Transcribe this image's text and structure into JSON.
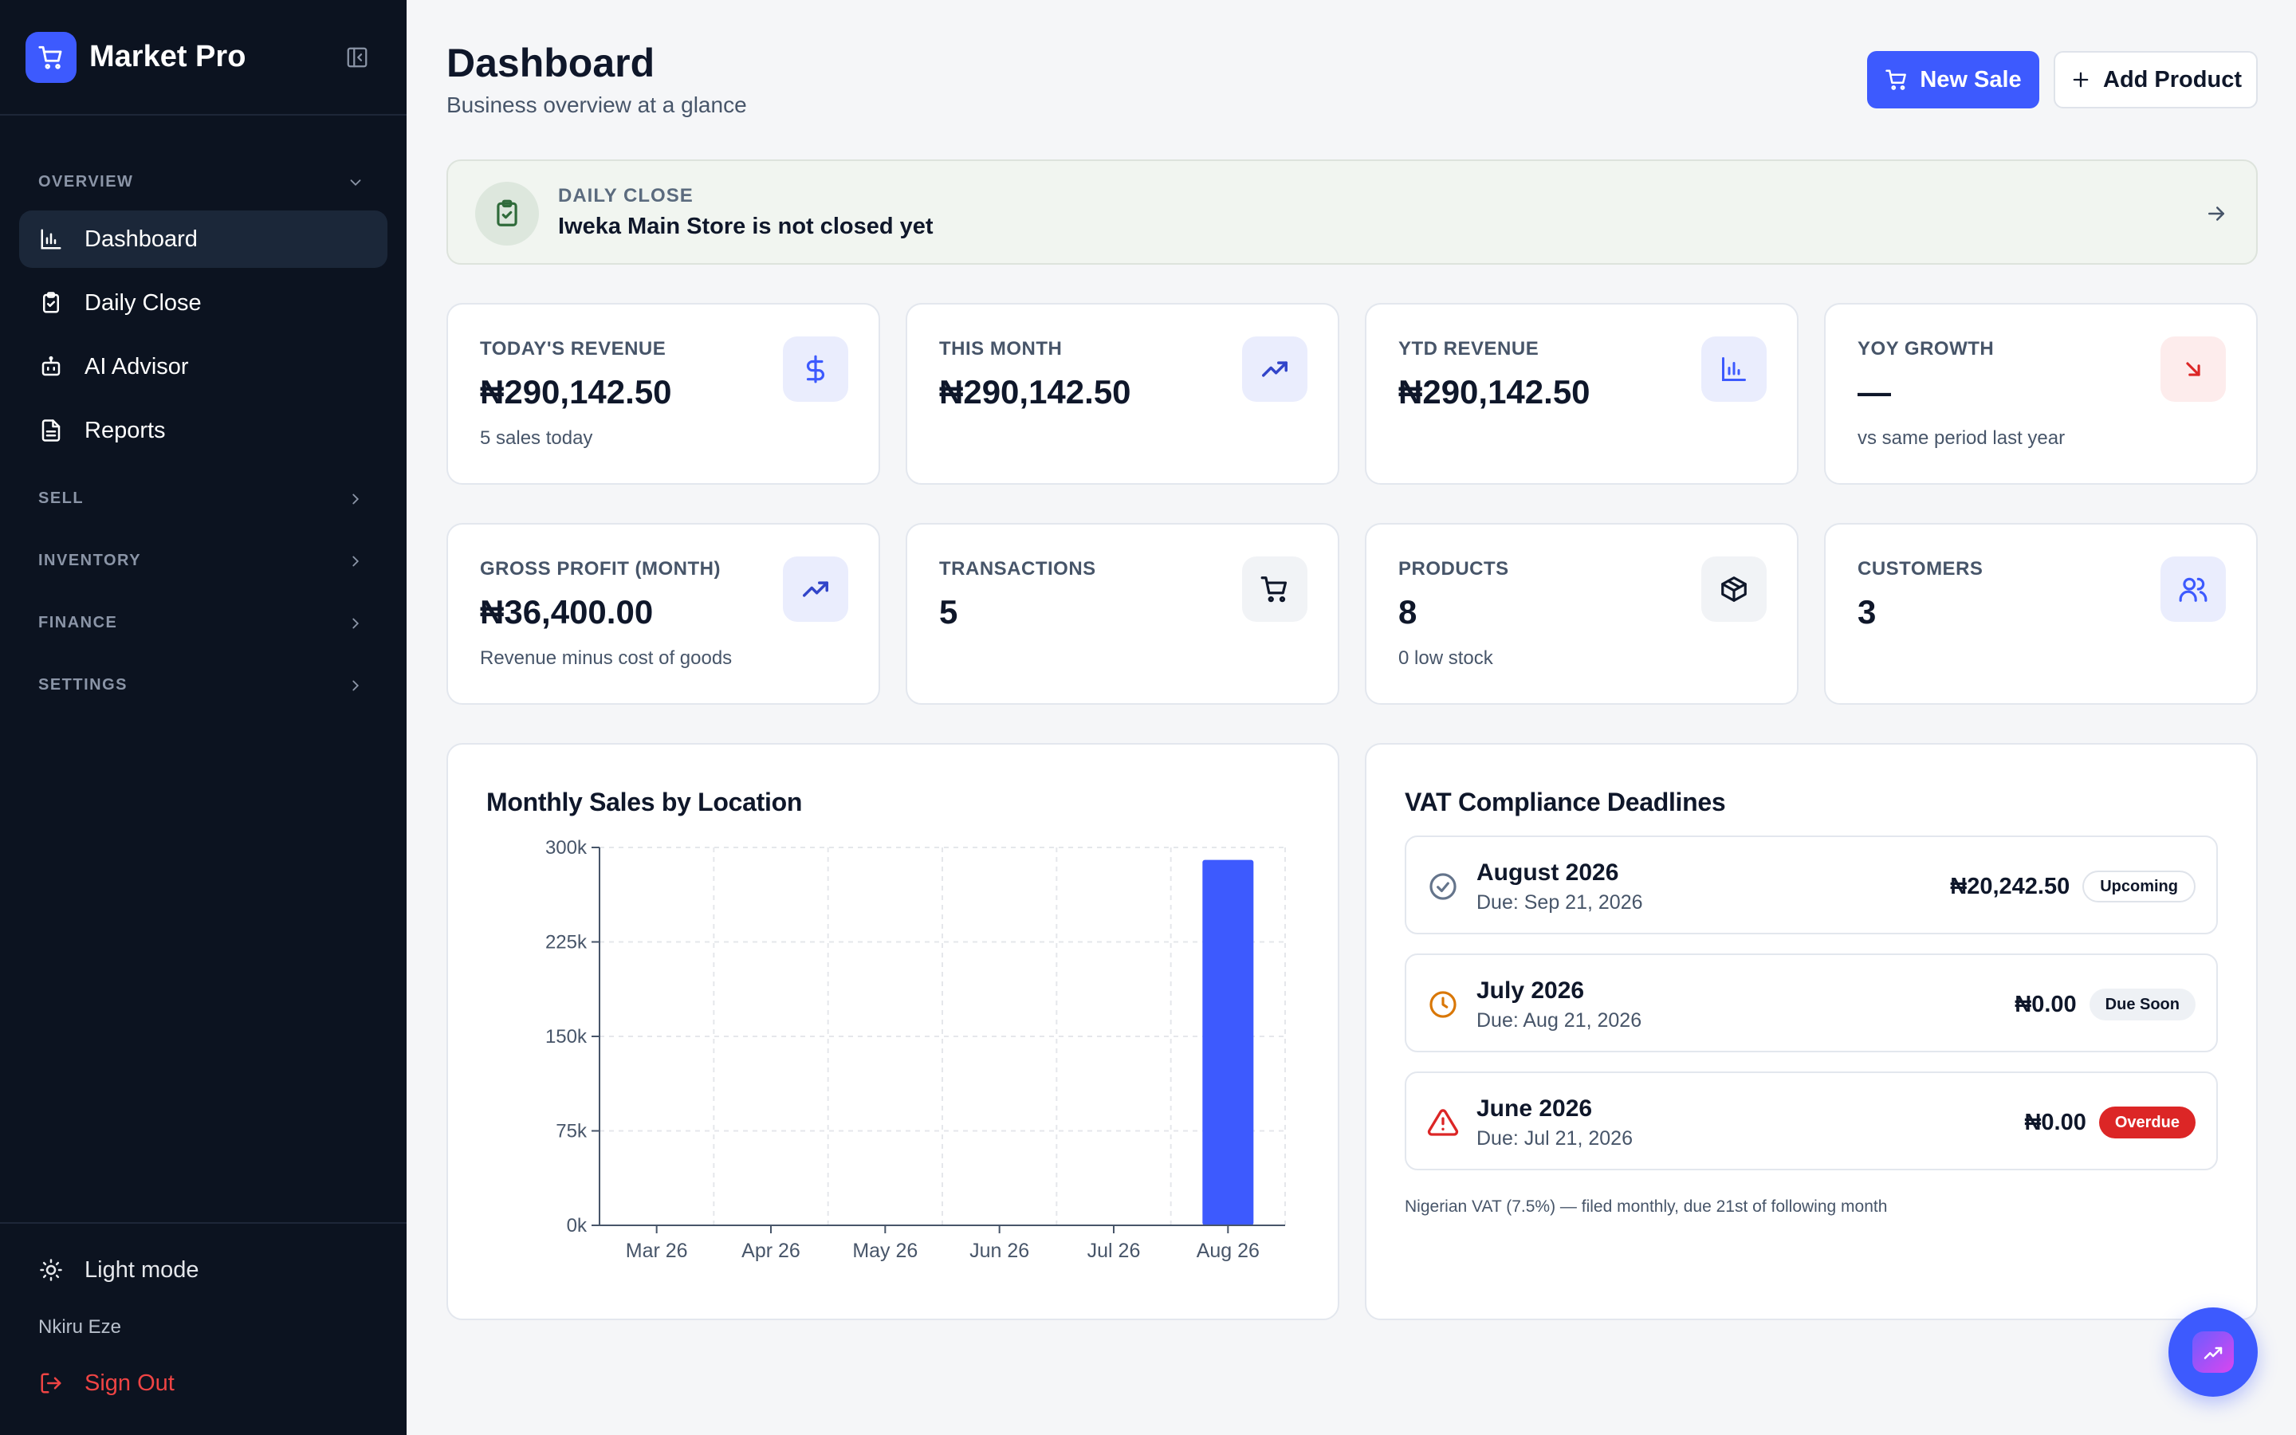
{
  "sidebar": {
    "brand": "Market Pro",
    "sections": {
      "overview": "OVERVIEW",
      "sell": "SELL",
      "inventory": "INVENTORY",
      "finance": "FINANCE",
      "settings": "SETTINGS"
    },
    "items": [
      {
        "label": "Dashboard",
        "icon": "bar-chart-icon",
        "active": true
      },
      {
        "label": "Daily Close",
        "icon": "clipboard-check-icon",
        "active": false
      },
      {
        "label": "AI Advisor",
        "icon": "bot-icon",
        "active": false
      },
      {
        "label": "Reports",
        "icon": "file-text-icon",
        "active": false
      }
    ],
    "mode_label": "Light mode",
    "user_name": "Nkiru Eze",
    "signout_label": "Sign Out"
  },
  "header": {
    "title": "Dashboard",
    "subtitle": "Business overview at a glance",
    "new_sale_label": "New Sale",
    "add_product_label": "Add Product"
  },
  "daily_close": {
    "kicker": "DAILY CLOSE",
    "message": "Iweka Main Store is not closed yet"
  },
  "stats": [
    {
      "label": "TODAY'S REVENUE",
      "value": "₦290,142.50",
      "sub": "5 sales today",
      "icon": "dollar-icon"
    },
    {
      "label": "THIS MONTH",
      "value": "₦290,142.50",
      "sub": "",
      "icon": "trending-up-icon"
    },
    {
      "label": "YTD REVENUE",
      "value": "₦290,142.50",
      "sub": "",
      "icon": "bar-chart-icon"
    },
    {
      "label": "YOY GROWTH",
      "value": "—",
      "sub": "vs same period last year",
      "icon": "arrow-down-right-icon"
    },
    {
      "label": "GROSS PROFIT (MONTH)",
      "value": "₦36,400.00",
      "sub": "Revenue minus cost of goods",
      "icon": "trending-up-icon"
    },
    {
      "label": "TRANSACTIONS",
      "value": "5",
      "sub": "",
      "icon": "cart-icon"
    },
    {
      "label": "PRODUCTS",
      "value": "8",
      "sub": "0 low stock",
      "icon": "box-icon"
    },
    {
      "label": "CUSTOMERS",
      "value": "3",
      "sub": "",
      "icon": "users-icon"
    }
  ],
  "sales_panel": {
    "title": "Monthly Sales by Location"
  },
  "chart_data": {
    "type": "bar",
    "title": "Monthly Sales by Location",
    "categories": [
      "Mar 26",
      "Apr 26",
      "May 26",
      "Jun 26",
      "Jul 26",
      "Aug 26"
    ],
    "values": [
      0,
      0,
      0,
      0,
      0,
      290142.5
    ],
    "ylim": [
      0,
      300000
    ],
    "yticks": [
      0,
      75000,
      150000,
      225000,
      300000
    ],
    "ytick_labels": [
      "0k",
      "75k",
      "150k",
      "225k",
      "300k"
    ],
    "grid": true,
    "color": "#3d5afe"
  },
  "vat_panel": {
    "title": "VAT Compliance Deadlines",
    "items": [
      {
        "month": "August 2026",
        "due": "Due: Sep 21, 2026",
        "amount": "₦20,242.50",
        "status": "Upcoming",
        "icon": "check-circle-icon"
      },
      {
        "month": "July 2026",
        "due": "Due: Aug 21, 2026",
        "amount": "₦0.00",
        "status": "Due Soon",
        "icon": "clock-icon"
      },
      {
        "month": "June 2026",
        "due": "Due: Jul 21, 2026",
        "amount": "₦0.00",
        "status": "Overdue",
        "icon": "alert-triangle-icon"
      }
    ],
    "note": "Nigerian VAT (7.5%) — filed monthly, due 21st of following month"
  },
  "colors": {
    "accent": "#3d5afe",
    "sidebar_bg": "#0c1320",
    "danger": "#dc2626",
    "warning": "#d97706",
    "success_bg": "#dde7dd"
  }
}
